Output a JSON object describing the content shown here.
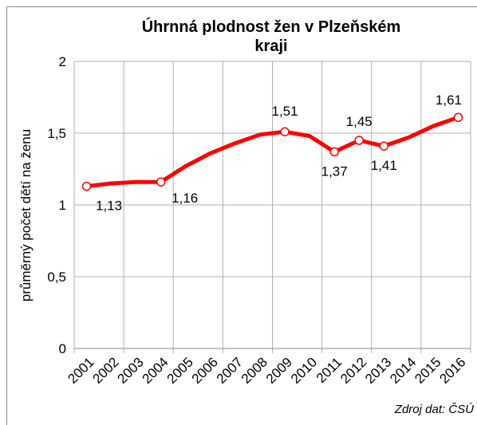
{
  "chart_data": {
    "type": "line",
    "title": "Úhrnná plodnost žen v Plzeňském kraji",
    "y_label": "průměrný počet dětí na ženu",
    "source": "Zdroj dat: ČSÚ",
    "categories": [
      "2001",
      "2002",
      "2003",
      "2004",
      "2005",
      "2006",
      "2007",
      "2008",
      "2009",
      "2010",
      "2011",
      "2012",
      "2013",
      "2014",
      "2015",
      "2016"
    ],
    "series": [
      {
        "name": "Úhrnná plodnost",
        "color": "#ff0000",
        "values": [
          1.13,
          1.15,
          1.16,
          1.16,
          1.27,
          1.36,
          1.43,
          1.49,
          1.51,
          1.48,
          1.37,
          1.45,
          1.41,
          1.47,
          1.55,
          1.61
        ],
        "value_labels": [
          "1,13",
          null,
          null,
          "1,16",
          null,
          null,
          null,
          null,
          "1,51",
          null,
          "1,37",
          "1,45",
          "1,41",
          null,
          null,
          "1,61"
        ]
      }
    ],
    "ylim": [
      0,
      2
    ],
    "yticks": [
      {
        "value": 0,
        "label": "0"
      },
      {
        "value": 0.5,
        "label": "0,5"
      },
      {
        "value": 1,
        "label": "1"
      },
      {
        "value": 1.5,
        "label": "1,5"
      },
      {
        "value": 2,
        "label": "2"
      }
    ],
    "grid": true
  }
}
